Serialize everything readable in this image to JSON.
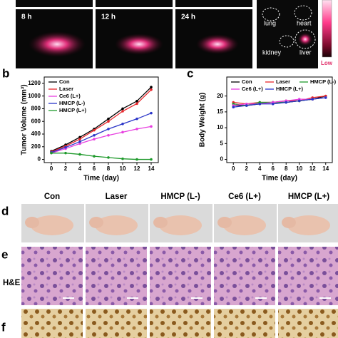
{
  "imaging": {
    "times": [
      "8 h",
      "12 h",
      "24 h"
    ],
    "organs": [
      "lung",
      "heart",
      "kidney",
      "liver"
    ],
    "scale_low": "Low"
  },
  "panel_labels": [
    "b",
    "c",
    "d",
    "e",
    "f"
  ],
  "treatment_groups": [
    "Con",
    "Laser",
    "HMCP (L-)",
    "Ce6 (L+)",
    "HMCP (L+)"
  ],
  "stain_label": "H&E",
  "chart_data": [
    {
      "type": "line",
      "x_label": "Time (day)",
      "y_label": "Tumor Volume (mm³)",
      "x": [
        0,
        2,
        4,
        6,
        8,
        10,
        12,
        14
      ],
      "xlim": [
        -1,
        15
      ],
      "xticks": [
        0,
        2,
        4,
        6,
        8,
        10,
        12,
        14
      ],
      "ylim": [
        -50,
        1300
      ],
      "yticks": [
        0,
        200,
        400,
        600,
        800,
        1000,
        1200
      ],
      "legend": "upper left",
      "series": [
        {
          "name": "Con",
          "color": "#000000",
          "values": [
            130,
            230,
            350,
            480,
            640,
            800,
            920,
            1140
          ]
        },
        {
          "name": "Laser",
          "color": "#e8262b",
          "values": [
            120,
            210,
            320,
            460,
            600,
            760,
            880,
            1100
          ]
        },
        {
          "name": "Ce6 (L+)",
          "color": "#e83fe0",
          "values": [
            100,
            170,
            250,
            320,
            380,
            430,
            480,
            520
          ]
        },
        {
          "name": "HMCP (L-)",
          "color": "#2a35c8",
          "values": [
            110,
            190,
            280,
            380,
            480,
            560,
            640,
            730
          ]
        },
        {
          "name": "HMCP (L+)",
          "color": "#1f9a2c",
          "values": [
            100,
            100,
            80,
            50,
            30,
            10,
            0,
            0
          ]
        }
      ]
    },
    {
      "type": "line",
      "x_label": "Time (day)",
      "y_label": "Body Weight (g)",
      "x": [
        0,
        2,
        4,
        6,
        8,
        10,
        12,
        14
      ],
      "xlim": [
        -1,
        15
      ],
      "xticks": [
        0,
        2,
        4,
        6,
        8,
        10,
        12,
        14
      ],
      "ylim": [
        -1,
        26
      ],
      "yticks": [
        0,
        5,
        10,
        15,
        20
      ],
      "legend": "upper center",
      "series": [
        {
          "name": "Con",
          "color": "#000000",
          "values": [
            17,
            17,
            17.5,
            18,
            18,
            18.5,
            19,
            20
          ]
        },
        {
          "name": "Laser",
          "color": "#e8262b",
          "values": [
            18,
            17.5,
            18,
            18,
            18.5,
            18.5,
            19.5,
            20
          ]
        },
        {
          "name": "HMCP (L-)",
          "color": "#1f9a2c",
          "values": [
            17.5,
            17,
            18,
            18,
            18,
            18.5,
            19,
            19.5
          ]
        },
        {
          "name": "Ce6 (L+)",
          "color": "#e83fe0",
          "values": [
            17,
            17.5,
            17.5,
            18,
            18.5,
            19,
            19,
            19.5
          ]
        },
        {
          "name": "HMCP (L+)",
          "color": "#2a35c8",
          "values": [
            16.5,
            17,
            17.5,
            17.5,
            18,
            18.5,
            19,
            19.5
          ]
        }
      ]
    }
  ]
}
